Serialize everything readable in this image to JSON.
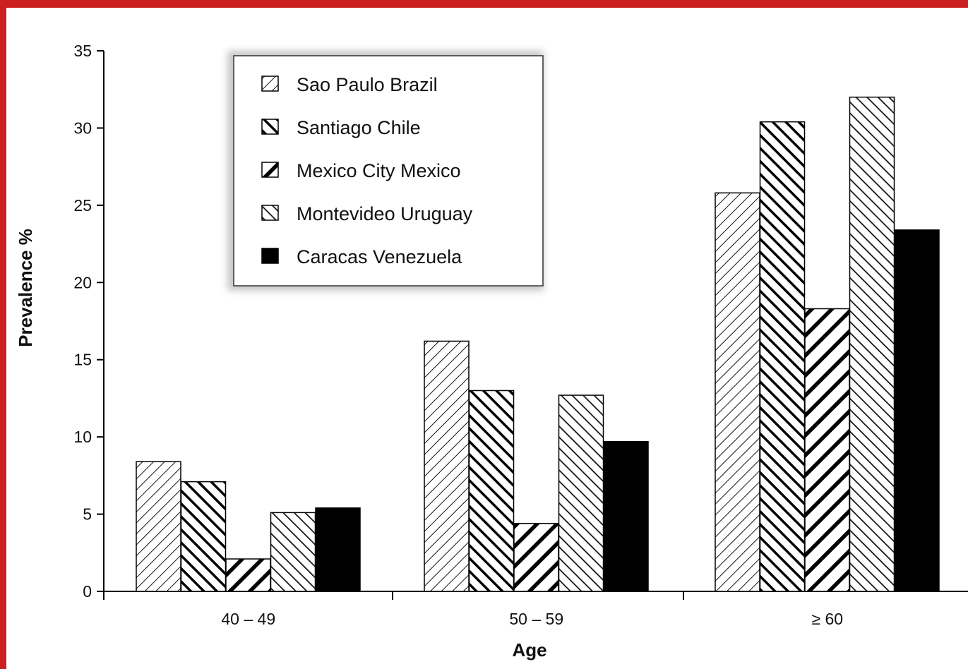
{
  "chart_data": {
    "type": "bar",
    "title": "",
    "xlabel": "Age",
    "ylabel": "Prevalence %",
    "categories": [
      "40 – 49",
      "50 – 59",
      "≥ 60"
    ],
    "ylim": [
      0,
      35
    ],
    "yticks": [
      "0",
      "5",
      "10",
      "15",
      "20",
      "25",
      "30",
      "35"
    ],
    "grid": false,
    "legend_position": "top-left",
    "series": [
      {
        "name": "Sao Paulo Brazil",
        "values": [
          8.4,
          16.2,
          25.8
        ],
        "pattern": "thin-diagonal-down"
      },
      {
        "name": "Santiago Chile",
        "values": [
          7.1,
          13.0,
          30.4
        ],
        "pattern": "thick-diagonal-up"
      },
      {
        "name": "Mexico City Mexico",
        "values": [
          2.1,
          4.4,
          18.3
        ],
        "pattern": "thick-diagonal-down"
      },
      {
        "name": "Montevideo Uruguay",
        "values": [
          5.1,
          12.7,
          32.0
        ],
        "pattern": "medium-diagonal-up"
      },
      {
        "name": "Caracas Venezuela",
        "values": [
          5.4,
          9.7,
          23.4
        ],
        "pattern": "solid"
      }
    ]
  },
  "colors": {
    "frame": "#cc1f1f",
    "ink": "#000000",
    "paper": "#ffffff"
  }
}
